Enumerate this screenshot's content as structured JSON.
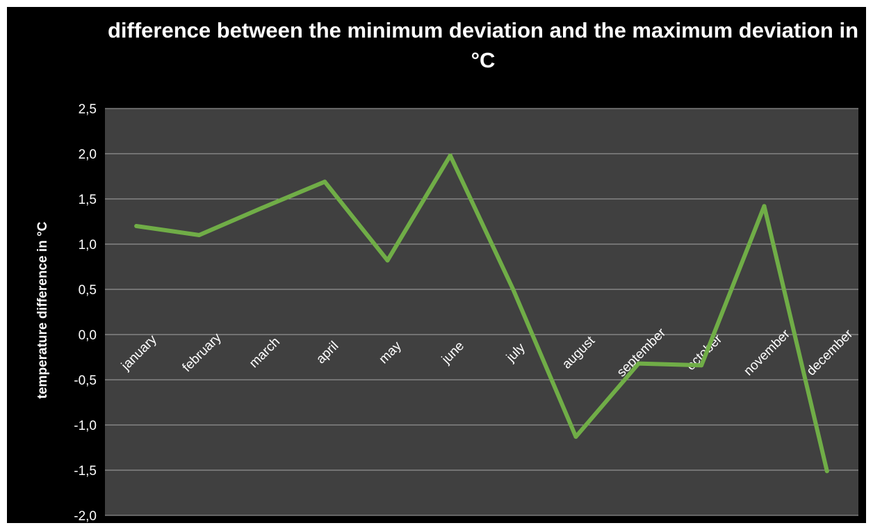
{
  "chart_data": {
    "type": "line",
    "title": "difference between the minimum deviation and the maximum deviation in °C",
    "xlabel": "",
    "ylabel": "temperature difference in °C",
    "categories": [
      "january",
      "february",
      "march",
      "april",
      "may",
      "june",
      "july",
      "august",
      "september",
      "october",
      "november",
      "december"
    ],
    "series": [
      {
        "values": [
          1.2,
          1.1,
          1.4,
          1.69,
          0.82,
          1.98,
          0.5,
          -1.13,
          -0.32,
          -0.34,
          1.42,
          -1.51
        ]
      }
    ],
    "ylim": [
      -2.0,
      2.5
    ],
    "yticks": [
      "2,5",
      "2,0",
      "1,5",
      "1,0",
      "0,5",
      "0,0",
      "-0,5",
      "-1,0",
      "-1,5",
      "-2,0"
    ],
    "grid": true,
    "legend": "none",
    "colors": {
      "background": "#000000",
      "plot_area": "#404040",
      "gridline": "#a6a6a6",
      "line": "#70ad47",
      "text": "#ffffff"
    }
  }
}
